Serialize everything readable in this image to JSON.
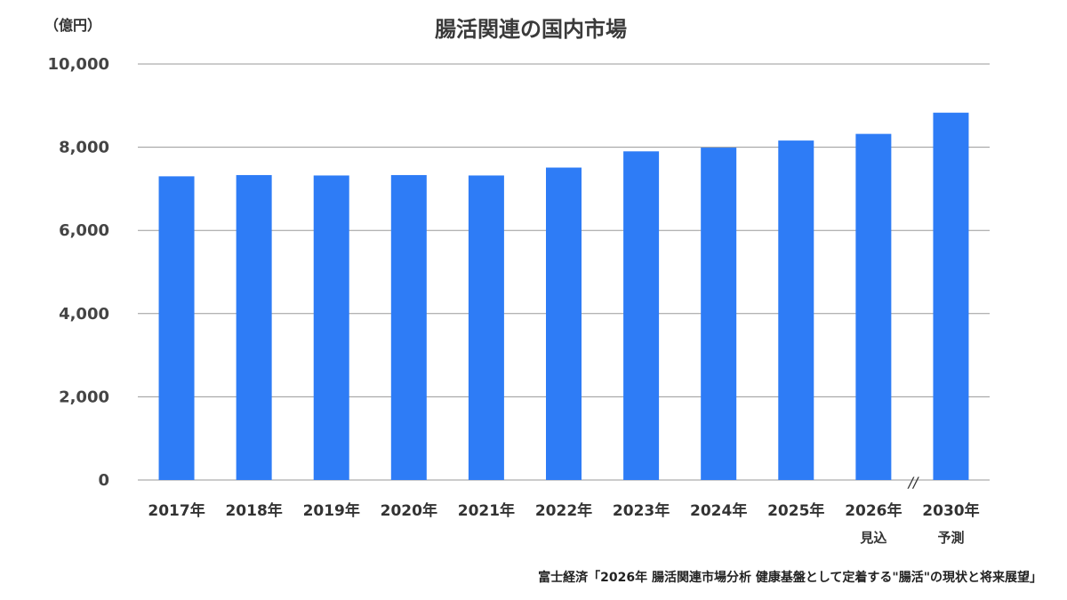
{
  "chart_data": {
    "type": "bar",
    "title": "腸活関連の国内市場",
    "unit_label": "（億円）",
    "categories": [
      "2017年",
      "2018年",
      "2019年",
      "2020年",
      "2021年",
      "2022年",
      "2023年",
      "2024年",
      "2025年",
      "2026年",
      "2030年"
    ],
    "sublabels": [
      "",
      "",
      "",
      "",
      "",
      "",
      "",
      "",
      "",
      "見込",
      "予測"
    ],
    "values": [
      7300,
      7330,
      7320,
      7330,
      7320,
      7510,
      7900,
      7990,
      8160,
      8320,
      8830
    ],
    "ylim": [
      0,
      10000
    ],
    "yticks": [
      "0",
      "2,000",
      "4,000",
      "6,000",
      "8,000",
      "10,000"
    ],
    "ytick_values": [
      0,
      2000,
      4000,
      6000,
      8000,
      10000
    ],
    "axis_break_label": "//",
    "grid": true,
    "bar_color": "#2e7cf6",
    "grid_color": "#9a9a9a",
    "source": "富士経済「2026年 腸活関連市場分析 健康基盤として定着する\"腸活\"の現状と将来展望」"
  }
}
